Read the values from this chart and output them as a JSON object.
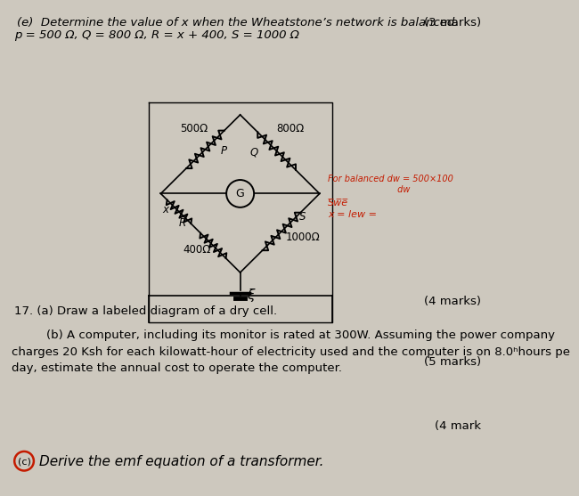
{
  "bg_color": "#cdc8be",
  "title_line1": "(e)  Determine the value of x when the Wheatstone’s network is balanced.",
  "title_marks1": "(3 marks)",
  "title_line2": "p = 500 Ω, Q = 800 Ω, R = x + 400, S = 1000 Ω",
  "q17a": "17. (a) Draw a labeled diagram of a dry cell.",
  "q17a_marks": "(4 marks)",
  "q17b_line1": "    (b) A computer, including its monitor is rated at 300W. Assuming the power company",
  "q17b_line2": "charges 20 Ksh for each kilowatt-hour of electricity used and the computer is on 8.0ʰhours pe",
  "q17b_line3": "day, estimate the annual cost to operate the computer.",
  "q17b_marks": "(5 marks)",
  "q17c_marks": "(4 mark",
  "q17c": "Derive the emf equation of a transformer.",
  "label_P": "500Ω",
  "label_Q": "800Ω",
  "label_R_x": "x",
  "label_R2": "400Ω",
  "label_S": "1000Ω",
  "label_G": "G",
  "label_xi": "ξ",
  "label_p": "P",
  "label_q": "Q",
  "label_r": "R",
  "label_s": "S",
  "red_line1": "For balanced dw = 500×100",
  "red_line2": "                          dw",
  "red_line3": "S̅w̅e̅",
  "red_line4": "x = lew ="
}
